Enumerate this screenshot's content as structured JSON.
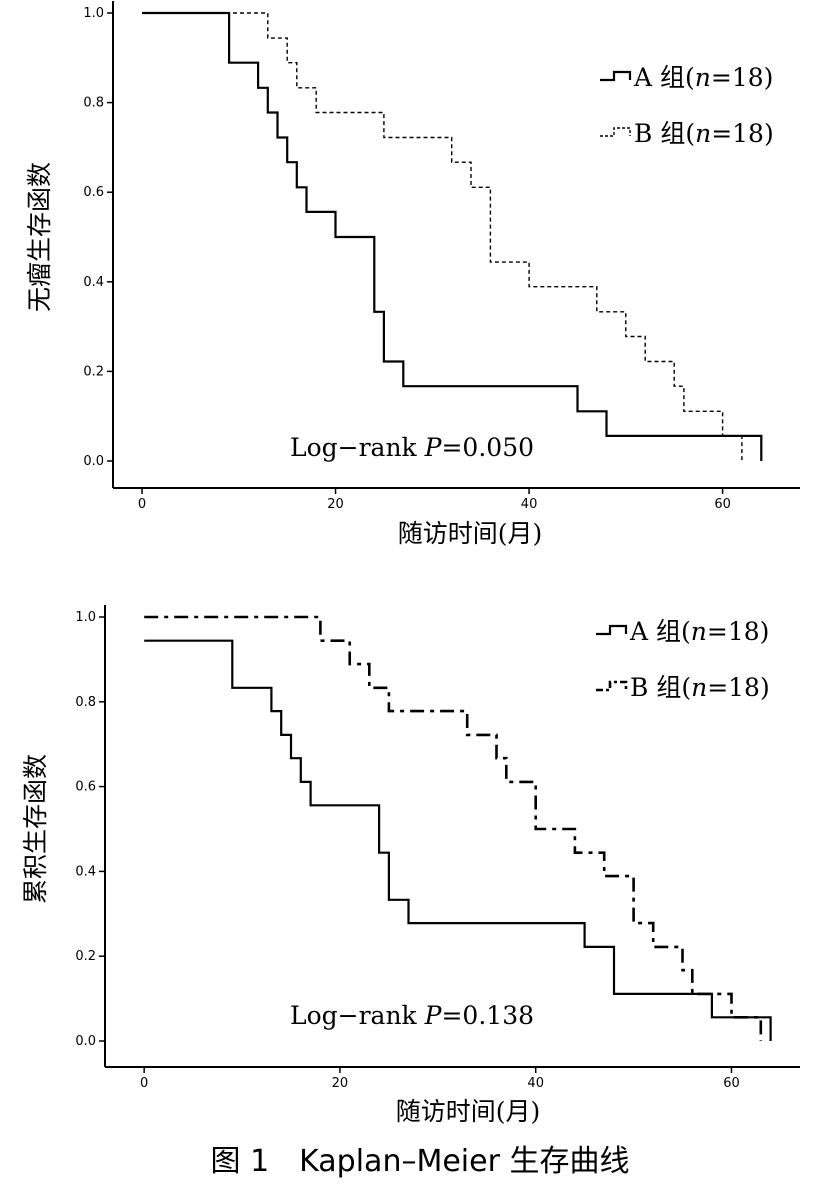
{
  "caption": "图 1　Kaplan–Meier 生存曲线",
  "chart_data": [
    {
      "type": "line",
      "step": true,
      "ylabel": "无瘤生存函数",
      "xlabel": "随访时间(月)",
      "xlim": [
        -3,
        68
      ],
      "ylim": [
        0,
        1.0
      ],
      "xticks": [
        0,
        20,
        40,
        60
      ],
      "xtick_labels": [
        "0",
        "20",
        "40",
        "60"
      ],
      "yticks": [
        0,
        0.2,
        0.4,
        0.6,
        0.8,
        1.0
      ],
      "ytick_labels": [
        "0.0",
        "0.2",
        "0.4",
        "0.6",
        "0.8",
        "1.0"
      ],
      "annotation_prefix": "Log−rank ",
      "annotation_p": "P",
      "annotation_value": "=0.050",
      "legend_position": "top-right",
      "series": [
        {
          "name_prefix": "A 组(",
          "name_var": "n",
          "name_suffix": "=18)",
          "style": "solid",
          "x": [
            0,
            9,
            12,
            13,
            14,
            15,
            16,
            17,
            20,
            24,
            25,
            27,
            45,
            48,
            64
          ],
          "y": [
            1.0,
            0.889,
            0.833,
            0.778,
            0.722,
            0.667,
            0.611,
            0.556,
            0.5,
            0.333,
            0.222,
            0.167,
            0.111,
            0.056,
            0.0
          ]
        },
        {
          "name_prefix": "B 组(",
          "name_var": "n",
          "name_suffix": "=18)",
          "style": "dotted",
          "x": [
            0,
            13,
            15,
            16,
            18,
            25,
            32,
            34,
            36,
            40,
            47,
            50,
            52,
            55,
            56,
            60,
            62
          ],
          "y": [
            1.0,
            0.944,
            0.889,
            0.833,
            0.778,
            0.722,
            0.667,
            0.611,
            0.444,
            0.389,
            0.333,
            0.278,
            0.222,
            0.167,
            0.111,
            0.056,
            0.0
          ]
        }
      ]
    },
    {
      "type": "line",
      "step": true,
      "ylabel": "累积生存函数",
      "xlabel": "随访时间(月)",
      "xlim": [
        -4,
        67
      ],
      "ylim": [
        0,
        1.0
      ],
      "xticks": [
        0,
        20,
        40,
        60
      ],
      "xtick_labels": [
        "0",
        "20",
        "40",
        "60"
      ],
      "yticks": [
        0,
        0.2,
        0.4,
        0.6,
        0.8,
        1.0
      ],
      "ytick_labels": [
        "0.0",
        "0.2",
        "0.4",
        "0.6",
        "0.8",
        "1.0"
      ],
      "annotation_prefix": "Log−rank ",
      "annotation_p": "P",
      "annotation_value": "=0.138",
      "legend_position": "top-right",
      "series": [
        {
          "name_prefix": "A 组(",
          "name_var": "n",
          "name_suffix": "=18)",
          "style": "solid",
          "x": [
            0,
            9,
            13,
            14,
            15,
            16,
            17,
            24,
            25,
            27,
            45,
            48,
            58,
            60,
            64
          ],
          "y": [
            0.944,
            0.833,
            0.778,
            0.722,
            0.667,
            0.611,
            0.556,
            0.444,
            0.333,
            0.278,
            0.222,
            0.111,
            0.056,
            0.056,
            0.0
          ]
        },
        {
          "name_prefix": "B 组(",
          "name_var": "n",
          "name_suffix": "=18)",
          "style": "dashdot",
          "x": [
            0,
            18,
            21,
            23,
            25,
            33,
            36,
            37,
            40,
            44,
            47,
            50,
            52,
            55,
            56,
            60,
            63
          ],
          "y": [
            1.0,
            0.944,
            0.889,
            0.833,
            0.778,
            0.722,
            0.667,
            0.611,
            0.5,
            0.444,
            0.389,
            0.278,
            0.222,
            0.167,
            0.111,
            0.056,
            0.0
          ]
        }
      ]
    }
  ]
}
